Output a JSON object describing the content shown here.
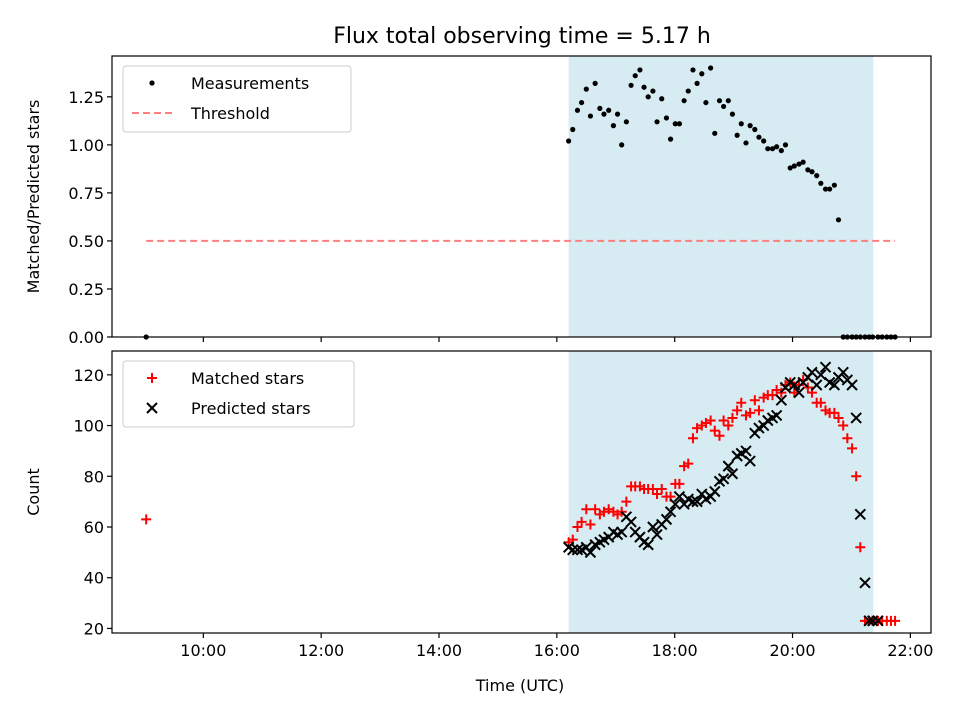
{
  "title": "Flux total observing time = 5.17 h",
  "xlabel": "Time (UTC)",
  "colors": {
    "shade": "#add8e6",
    "threshold": "#ff7f7f",
    "matched": "#ff0000",
    "predicted": "#000000",
    "measurement": "#000000"
  },
  "chart_data": [
    {
      "type": "scatter",
      "ylabel": "Matched/Predicted stars",
      "xlim": [
        8.45,
        22.35
      ],
      "ylim": [
        0,
        1.4625
      ],
      "yticks": [
        0.0,
        0.25,
        0.5,
        0.75,
        1.0,
        1.25
      ],
      "ytick_labels": [
        "0.00",
        "0.25",
        "0.50",
        "0.75",
        "1.00",
        "1.25"
      ],
      "xticks": [
        10,
        12,
        14,
        16,
        18,
        20,
        22
      ],
      "xtick_labels": [],
      "shaded_span": [
        16.2,
        21.37
      ],
      "legend": {
        "placement": "top-left",
        "entries": [
          "Measurements",
          "Threshold"
        ]
      },
      "series": [
        {
          "name": "Measurements",
          "kind": "points",
          "x": [
            9.03,
            16.2,
            16.27,
            16.35,
            16.42,
            16.5,
            16.57,
            16.65,
            16.73,
            16.8,
            16.88,
            16.96,
            17.03,
            17.1,
            17.18,
            17.26,
            17.33,
            17.41,
            17.48,
            17.55,
            17.63,
            17.7,
            17.78,
            17.86,
            17.93,
            18.01,
            18.08,
            18.16,
            18.23,
            18.31,
            18.38,
            18.46,
            18.53,
            18.61,
            18.68,
            18.76,
            18.83,
            18.91,
            18.98,
            19.06,
            19.13,
            19.21,
            19.28,
            19.36,
            19.43,
            19.51,
            19.58,
            19.66,
            19.73,
            19.81,
            19.88,
            19.96,
            20.03,
            20.11,
            20.18,
            20.26,
            20.33,
            20.41,
            20.48,
            20.56,
            20.63,
            20.71,
            20.78,
            20.86,
            20.93,
            21.01,
            21.08,
            21.15,
            21.23,
            21.3,
            21.36,
            21.45,
            21.52,
            21.6,
            21.67,
            21.74
          ],
          "y": [
            0.0,
            1.02,
            1.08,
            1.18,
            1.22,
            1.29,
            1.15,
            1.32,
            1.19,
            1.16,
            1.18,
            1.1,
            1.16,
            1.0,
            1.12,
            1.31,
            1.36,
            1.39,
            1.3,
            1.25,
            1.28,
            1.12,
            1.24,
            1.14,
            1.03,
            1.11,
            1.11,
            1.23,
            1.28,
            1.39,
            1.32,
            1.37,
            1.22,
            1.4,
            1.06,
            1.23,
            1.2,
            1.23,
            1.16,
            1.05,
            1.11,
            1.01,
            1.1,
            1.08,
            1.04,
            1.02,
            0.98,
            0.98,
            0.99,
            0.97,
            1.0,
            0.88,
            0.89,
            0.9,
            0.91,
            0.87,
            0.86,
            0.84,
            0.8,
            0.77,
            0.77,
            0.79,
            0.61,
            0.0,
            0.0,
            0.0,
            0.0,
            0.0,
            0.0,
            0.0,
            0.0,
            0.0,
            0.0,
            0.0,
            0.0,
            0.0
          ]
        },
        {
          "name": "Threshold",
          "kind": "dashed-line",
          "x": [
            9.03,
            21.74
          ],
          "y": [
            0.5,
            0.5
          ]
        }
      ]
    },
    {
      "type": "scatter",
      "ylabel": "Count",
      "xlim": [
        8.45,
        22.35
      ],
      "ylim": [
        18.2,
        129.4
      ],
      "yticks": [
        20,
        40,
        60,
        80,
        100,
        120
      ],
      "ytick_labels": [
        "20",
        "40",
        "60",
        "80",
        "100",
        "120"
      ],
      "xticks": [
        10,
        12,
        14,
        16,
        18,
        20,
        22
      ],
      "xtick_labels": [
        "10:00",
        "12:00",
        "14:00",
        "16:00",
        "18:00",
        "20:00",
        "22:00"
      ],
      "shaded_span": [
        16.2,
        21.37
      ],
      "legend": {
        "placement": "top-left",
        "entries": [
          "Matched stars",
          "Predicted stars"
        ]
      },
      "series": [
        {
          "name": "Matched stars",
          "kind": "plus",
          "x": [
            9.03,
            16.2,
            16.27,
            16.35,
            16.42,
            16.5,
            16.57,
            16.65,
            16.73,
            16.8,
            16.88,
            16.96,
            17.03,
            17.1,
            17.18,
            17.26,
            17.33,
            17.41,
            17.48,
            17.55,
            17.63,
            17.7,
            17.78,
            17.86,
            17.93,
            18.01,
            18.08,
            18.16,
            18.23,
            18.31,
            18.38,
            18.46,
            18.53,
            18.61,
            18.68,
            18.76,
            18.83,
            18.91,
            18.98,
            19.06,
            19.13,
            19.21,
            19.28,
            19.36,
            19.43,
            19.51,
            19.58,
            19.66,
            19.73,
            19.81,
            19.88,
            19.96,
            20.03,
            20.11,
            20.18,
            20.26,
            20.33,
            20.41,
            20.48,
            20.56,
            20.63,
            20.71,
            20.78,
            20.86,
            20.93,
            21.01,
            21.08,
            21.15,
            21.23,
            21.3,
            21.36,
            21.45,
            21.52,
            21.6,
            21.67,
            21.74
          ],
          "y": [
            63,
            54,
            55,
            60,
            62,
            67,
            61,
            67,
            65,
            66,
            67,
            66,
            65,
            66,
            70,
            76,
            76,
            76,
            75,
            75,
            75,
            73,
            75,
            72,
            72,
            77,
            77,
            84,
            85,
            95,
            99,
            100,
            101,
            102,
            98,
            96,
            102,
            100,
            103,
            106,
            109,
            104,
            105,
            110,
            106,
            111,
            112,
            112,
            114,
            113,
            116,
            117,
            113,
            116,
            118,
            115,
            113,
            109,
            109,
            106,
            105,
            105,
            103,
            100,
            95,
            91,
            80,
            52,
            23,
            23,
            23,
            23,
            23,
            23,
            23,
            23
          ]
        },
        {
          "name": "Predicted stars",
          "kind": "cross",
          "x": [
            16.2,
            16.27,
            16.35,
            16.42,
            16.5,
            16.57,
            16.65,
            16.73,
            16.8,
            16.88,
            16.96,
            17.03,
            17.1,
            17.18,
            17.26,
            17.33,
            17.41,
            17.48,
            17.55,
            17.63,
            17.7,
            17.78,
            17.86,
            17.93,
            18.01,
            18.08,
            18.16,
            18.23,
            18.31,
            18.38,
            18.46,
            18.53,
            18.61,
            18.68,
            18.76,
            18.83,
            18.91,
            18.98,
            19.06,
            19.13,
            19.21,
            19.28,
            19.36,
            19.43,
            19.51,
            19.58,
            19.66,
            19.73,
            19.81,
            19.88,
            19.96,
            20.03,
            20.11,
            20.18,
            20.26,
            20.33,
            20.41,
            20.48,
            20.56,
            20.63,
            20.71,
            20.78,
            20.86,
            20.93,
            21.01,
            21.08,
            21.15,
            21.23,
            21.3,
            21.36,
            21.45
          ],
          "y": [
            52,
            51,
            51,
            51,
            52,
            50,
            53,
            54,
            55,
            56,
            58,
            57,
            58,
            64,
            62,
            58,
            56,
            54,
            53,
            60,
            57,
            61,
            63,
            66,
            69,
            72,
            69,
            71,
            70,
            70,
            73,
            71,
            72,
            74,
            78,
            79,
            84,
            81,
            88,
            89,
            90,
            86,
            97,
            99,
            100,
            102,
            103,
            104,
            110,
            115,
            117,
            116,
            113,
            117,
            119,
            121,
            116,
            120,
            123,
            117,
            116,
            119,
            121,
            118,
            116,
            103,
            65,
            38,
            23,
            23,
            23
          ]
        }
      ]
    }
  ]
}
